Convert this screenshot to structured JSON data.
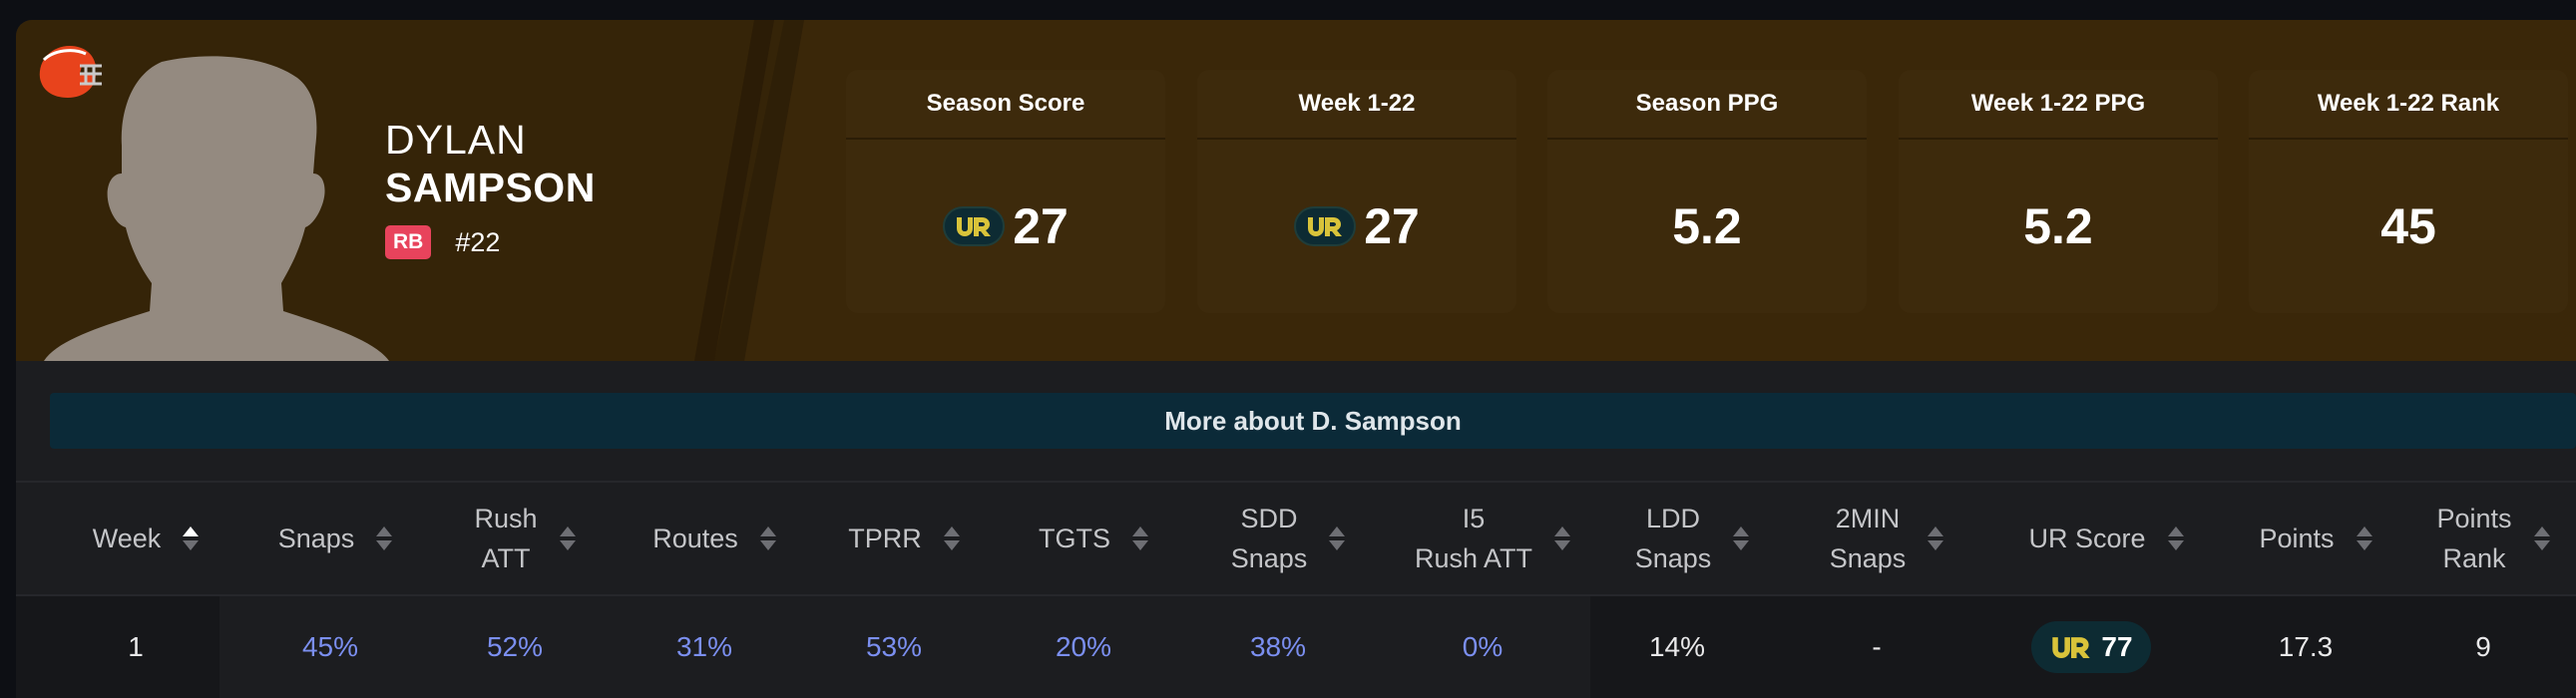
{
  "player": {
    "first_name": "DYLAN",
    "last_name": "SAMPSON",
    "position": "RB",
    "jersey": "#22"
  },
  "colors": {
    "hero_bg": "#352408",
    "stat_card_bg": "#3d2a0c",
    "position_badge": "#e8435c",
    "link_blue": "#7b8ff0",
    "ur_logo_yellow": "#d9c33a",
    "team_orange": "#e8431c"
  },
  "stats": [
    {
      "label": "Season Score",
      "value": "27",
      "has_ur_logo": true
    },
    {
      "label": "Week 1-22",
      "value": "27",
      "has_ur_logo": true
    },
    {
      "label": "Season PPG",
      "value": "5.2",
      "has_ur_logo": false
    },
    {
      "label": "Week 1-22 PPG",
      "value": "5.2",
      "has_ur_logo": false
    },
    {
      "label": "Week 1-22 Rank",
      "value": "45",
      "has_ur_logo": false
    }
  ],
  "more_about": "More about D. Sampson",
  "table": {
    "columns": [
      {
        "label": "Week",
        "sort": "asc"
      },
      {
        "label": "Snaps",
        "sort": "none"
      },
      {
        "label": "Rush\nATT",
        "sort": "none"
      },
      {
        "label": "Routes",
        "sort": "none"
      },
      {
        "label": "TPRR",
        "sort": "none"
      },
      {
        "label": "TGTS",
        "sort": "none"
      },
      {
        "label": "SDD\nSnaps",
        "sort": "none"
      },
      {
        "label": "I5\nRush ATT",
        "sort": "none"
      },
      {
        "label": "LDD\nSnaps",
        "sort": "none"
      },
      {
        "label": "2MIN\nSnaps",
        "sort": "none"
      },
      {
        "label": "UR Score",
        "sort": "none"
      },
      {
        "label": "Points",
        "sort": "none"
      },
      {
        "label": "Points\nRank",
        "sort": "none"
      }
    ],
    "rows": [
      {
        "week": "1",
        "snaps": "45%",
        "rush_att": "52%",
        "routes": "31%",
        "tprr": "53%",
        "tgts": "20%",
        "sdd_snaps": "38%",
        "i5_rush_att": "0%",
        "ldd_snaps": "14%",
        "two_min_snaps": "-",
        "ur_score": "77",
        "points": "17.3",
        "points_rank": "9"
      }
    ]
  },
  "icons": {
    "team_logo": "browns-helmet-icon",
    "ur_logo": "ur-logo-icon",
    "sort": "sort-arrows-icon"
  }
}
